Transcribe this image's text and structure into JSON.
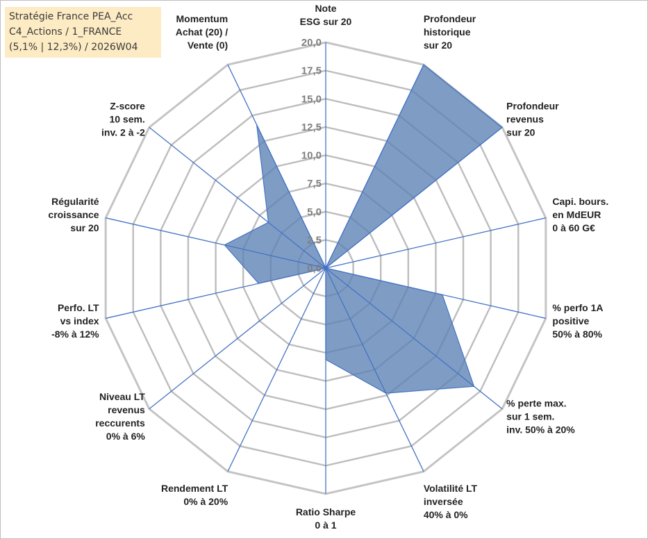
{
  "title_lines": [
    "Stratégie France PEA_Acc",
    "C4_Actions / 1_FRANCE",
    "(5,1% | 12,3%) / 2026W04"
  ],
  "chart_data": {
    "type": "radar",
    "scale": {
      "min": 0,
      "max": 20,
      "step": 2.5
    },
    "tick_labels": [
      "0,0",
      "2,5",
      "5,0",
      "7,5",
      "10,0",
      "12,5",
      "15,0",
      "17,5",
      "20,0"
    ],
    "grid": true,
    "categories": [
      {
        "label": [
          "Note",
          "ESG sur 20"
        ]
      },
      {
        "label": [
          "Profondeur",
          "historique",
          "sur 20"
        ]
      },
      {
        "label": [
          "Profondeur",
          "revenus",
          "sur 20"
        ]
      },
      {
        "label": [
          "Capi. bours.",
          "en MdEUR",
          "0 à 60 G€"
        ]
      },
      {
        "label": [
          "% perfo 1A",
          "positive",
          "50% à 80%"
        ]
      },
      {
        "label": [
          "% perte max.",
          "sur 1 sem.",
          "inv. 50% à 20%"
        ]
      },
      {
        "label": [
          "Volatilité LT",
          "inversée",
          "40% à 0%"
        ]
      },
      {
        "label": [
          "Ratio Sharpe",
          "0 à 1"
        ]
      },
      {
        "label": [
          "Rendement LT",
          "0% à 20%"
        ]
      },
      {
        "label": [
          "Niveau LT",
          "revenus",
          "reccurents",
          "0% à 6%"
        ]
      },
      {
        "label": [
          "Perfo. LT",
          "vs index",
          "-8% à 12%"
        ]
      },
      {
        "label": [
          "Régularité",
          "croissance",
          "sur 20"
        ]
      },
      {
        "label": [
          "Z-score",
          "10 sem.",
          "inv. 2 à -2"
        ]
      },
      {
        "label": [
          "Momentum",
          "Achat (20) /",
          "Vente (0)"
        ]
      }
    ],
    "values": [
      0,
      20,
      20,
      0,
      10.6,
      16.8,
      12.3,
      8.1,
      0,
      0,
      6.1,
      9.2,
      6.5,
      14.1
    ],
    "colors": {
      "fill": "#5b82b3",
      "fill_opacity": 0.78,
      "stroke": "#4472c4",
      "axis": "#4472c4",
      "grid": "#bdbdbd",
      "outer": "#c4c4c4"
    }
  }
}
